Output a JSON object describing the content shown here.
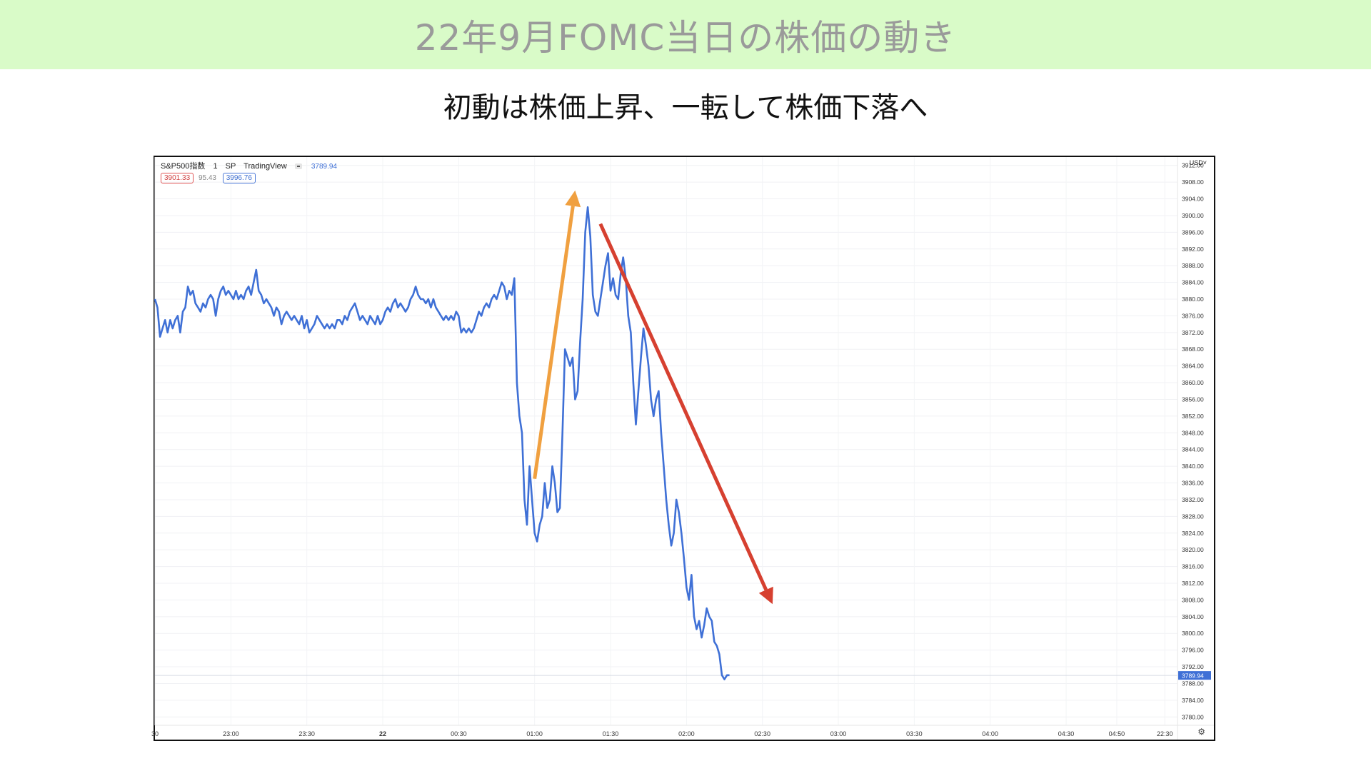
{
  "header": {
    "title": "22年9月FOMC当日の株価の動き",
    "subtitle": "初動は株価上昇、一転して株価下落へ"
  },
  "chart_info": {
    "symbol": "S&P500指数",
    "interval": "1",
    "exchange": "SP",
    "source": "TradingView",
    "last_price": "3789.94",
    "high_badge": "3901.33",
    "mid_value": "95.43",
    "low_badge": "3996.76",
    "currency": "USD˅"
  },
  "colors": {
    "banner_bg": "#d9fbc8",
    "line": "#3f70d6",
    "up_arrow": "#f0a040",
    "down_arrow": "#d64030",
    "price_label_bg": "#3f70d6"
  },
  "chart_data": {
    "type": "line",
    "title": "",
    "xlabel": "",
    "ylabel": "",
    "ylim": [
      3778,
      3914
    ],
    "y_ticks": [
      "3912.00",
      "3908.00",
      "3904.00",
      "3900.00",
      "3896.00",
      "3892.00",
      "3888.00",
      "3884.00",
      "3880.00",
      "3876.00",
      "3872.00",
      "3868.00",
      "3864.00",
      "3860.00",
      "3856.00",
      "3852.00",
      "3848.00",
      "3844.00",
      "3840.00",
      "3836.00",
      "3832.00",
      "3828.00",
      "3824.00",
      "3820.00",
      "3816.00",
      "3812.00",
      "3808.00",
      "3804.00",
      "3800.00",
      "3796.00",
      "3792.00",
      "3788.00",
      "3784.00",
      "3780.00"
    ],
    "x_ticks": [
      {
        "label": "30",
        "t": 0
      },
      {
        "label": "23:00",
        "t": 30
      },
      {
        "label": "23:30",
        "t": 60
      },
      {
        "label": "22",
        "t": 90
      },
      {
        "label": "00:30",
        "t": 120
      },
      {
        "label": "01:00",
        "t": 150
      },
      {
        "label": "01:30",
        "t": 180
      },
      {
        "label": "02:00",
        "t": 210
      },
      {
        "label": "02:30",
        "t": 240
      },
      {
        "label": "03:00",
        "t": 270
      },
      {
        "label": "03:30",
        "t": 300
      },
      {
        "label": "04:00",
        "t": 330
      },
      {
        "label": "04:30",
        "t": 360
      },
      {
        "label": "04:50",
        "t": 380
      },
      {
        "label": "22:30",
        "t": 399
      }
    ],
    "series": [
      {
        "name": "",
        "points": [
          [
            0,
            3880
          ],
          [
            1,
            3878
          ],
          [
            2,
            3871
          ],
          [
            3,
            3873
          ],
          [
            4,
            3875
          ],
          [
            5,
            3872
          ],
          [
            6,
            3875
          ],
          [
            7,
            3873
          ],
          [
            8,
            3875
          ],
          [
            9,
            3876
          ],
          [
            10,
            3872
          ],
          [
            11,
            3877
          ],
          [
            12,
            3878
          ],
          [
            13,
            3883
          ],
          [
            14,
            3881
          ],
          [
            15,
            3882
          ],
          [
            16,
            3879
          ],
          [
            17,
            3878
          ],
          [
            18,
            3877
          ],
          [
            19,
            3879
          ],
          [
            20,
            3878
          ],
          [
            21,
            3880
          ],
          [
            22,
            3881
          ],
          [
            23,
            3880
          ],
          [
            24,
            3876
          ],
          [
            25,
            3880
          ],
          [
            26,
            3882
          ],
          [
            27,
            3883
          ],
          [
            28,
            3881
          ],
          [
            29,
            3882
          ],
          [
            30,
            3881
          ],
          [
            31,
            3880
          ],
          [
            32,
            3882
          ],
          [
            33,
            3880
          ],
          [
            34,
            3881
          ],
          [
            35,
            3880
          ],
          [
            36,
            3882
          ],
          [
            37,
            3883
          ],
          [
            38,
            3881
          ],
          [
            39,
            3884
          ],
          [
            40,
            3887
          ],
          [
            41,
            3882
          ],
          [
            42,
            3881
          ],
          [
            43,
            3879
          ],
          [
            44,
            3880
          ],
          [
            45,
            3879
          ],
          [
            46,
            3878
          ],
          [
            47,
            3876
          ],
          [
            48,
            3878
          ],
          [
            49,
            3877
          ],
          [
            50,
            3874
          ],
          [
            51,
            3876
          ],
          [
            52,
            3877
          ],
          [
            53,
            3876
          ],
          [
            54,
            3875
          ],
          [
            55,
            3876
          ],
          [
            56,
            3875
          ],
          [
            57,
            3874
          ],
          [
            58,
            3876
          ],
          [
            59,
            3873
          ],
          [
            60,
            3875
          ],
          [
            61,
            3872
          ],
          [
            62,
            3873
          ],
          [
            63,
            3874
          ],
          [
            64,
            3876
          ],
          [
            65,
            3875
          ],
          [
            66,
            3874
          ],
          [
            67,
            3873
          ],
          [
            68,
            3874
          ],
          [
            69,
            3873
          ],
          [
            70,
            3874
          ],
          [
            71,
            3873
          ],
          [
            72,
            3875
          ],
          [
            73,
            3875
          ],
          [
            74,
            3874
          ],
          [
            75,
            3876
          ],
          [
            76,
            3875
          ],
          [
            77,
            3877
          ],
          [
            78,
            3878
          ],
          [
            79,
            3879
          ],
          [
            80,
            3877
          ],
          [
            81,
            3875
          ],
          [
            82,
            3876
          ],
          [
            83,
            3875
          ],
          [
            84,
            3874
          ],
          [
            85,
            3876
          ],
          [
            86,
            3875
          ],
          [
            87,
            3874
          ],
          [
            88,
            3876
          ],
          [
            89,
            3874
          ],
          [
            90,
            3875
          ],
          [
            91,
            3877
          ],
          [
            92,
            3878
          ],
          [
            93,
            3877
          ],
          [
            94,
            3879
          ],
          [
            95,
            3880
          ],
          [
            96,
            3878
          ],
          [
            97,
            3879
          ],
          [
            98,
            3878
          ],
          [
            99,
            3877
          ],
          [
            100,
            3878
          ],
          [
            101,
            3880
          ],
          [
            102,
            3881
          ],
          [
            103,
            3883
          ],
          [
            104,
            3881
          ],
          [
            105,
            3880
          ],
          [
            106,
            3880
          ],
          [
            107,
            3879
          ],
          [
            108,
            3880
          ],
          [
            109,
            3878
          ],
          [
            110,
            3880
          ],
          [
            111,
            3878
          ],
          [
            112,
            3877
          ],
          [
            113,
            3876
          ],
          [
            114,
            3875
          ],
          [
            115,
            3876
          ],
          [
            116,
            3875
          ],
          [
            117,
            3876
          ],
          [
            118,
            3875
          ],
          [
            119,
            3877
          ],
          [
            120,
            3876
          ],
          [
            121,
            3872
          ],
          [
            122,
            3873
          ],
          [
            123,
            3872
          ],
          [
            124,
            3873
          ],
          [
            125,
            3872
          ],
          [
            126,
            3873
          ],
          [
            127,
            3875
          ],
          [
            128,
            3877
          ],
          [
            129,
            3876
          ],
          [
            130,
            3878
          ],
          [
            131,
            3879
          ],
          [
            132,
            3878
          ],
          [
            133,
            3880
          ],
          [
            134,
            3881
          ],
          [
            135,
            3880
          ],
          [
            136,
            3882
          ],
          [
            137,
            3884
          ],
          [
            138,
            3883
          ],
          [
            139,
            3880
          ],
          [
            140,
            3882
          ],
          [
            141,
            3881
          ],
          [
            142,
            3885
          ],
          [
            143,
            3860
          ],
          [
            144,
            3852
          ],
          [
            145,
            3848
          ],
          [
            146,
            3832
          ],
          [
            147,
            3826
          ],
          [
            148,
            3840
          ],
          [
            149,
            3832
          ],
          [
            150,
            3824
          ],
          [
            151,
            3822
          ],
          [
            152,
            3826
          ],
          [
            153,
            3828
          ],
          [
            154,
            3836
          ],
          [
            155,
            3830
          ],
          [
            156,
            3832
          ],
          [
            157,
            3840
          ],
          [
            158,
            3836
          ],
          [
            159,
            3829
          ],
          [
            160,
            3830
          ],
          [
            161,
            3848
          ],
          [
            162,
            3868
          ],
          [
            163,
            3866
          ],
          [
            164,
            3864
          ],
          [
            165,
            3866
          ],
          [
            166,
            3856
          ],
          [
            167,
            3858
          ],
          [
            168,
            3870
          ],
          [
            169,
            3880
          ],
          [
            170,
            3896
          ],
          [
            171,
            3902
          ],
          [
            172,
            3895
          ],
          [
            173,
            3881
          ],
          [
            174,
            3877
          ],
          [
            175,
            3876
          ],
          [
            176,
            3880
          ],
          [
            177,
            3884
          ],
          [
            178,
            3888
          ],
          [
            179,
            3891
          ],
          [
            180,
            3882
          ],
          [
            181,
            3885
          ],
          [
            182,
            3881
          ],
          [
            183,
            3880
          ],
          [
            184,
            3886
          ],
          [
            185,
            3890
          ],
          [
            186,
            3885
          ],
          [
            187,
            3876
          ],
          [
            188,
            3872
          ],
          [
            189,
            3860
          ],
          [
            190,
            3850
          ],
          [
            191,
            3858
          ],
          [
            192,
            3866
          ],
          [
            193,
            3873
          ],
          [
            194,
            3869
          ],
          [
            195,
            3864
          ],
          [
            196,
            3856
          ],
          [
            197,
            3852
          ],
          [
            198,
            3856
          ],
          [
            199,
            3858
          ],
          [
            200,
            3848
          ],
          [
            201,
            3840
          ],
          [
            202,
            3832
          ],
          [
            203,
            3826
          ],
          [
            204,
            3821
          ],
          [
            205,
            3824
          ],
          [
            206,
            3832
          ],
          [
            207,
            3829
          ],
          [
            208,
            3824
          ],
          [
            209,
            3818
          ],
          [
            210,
            3811
          ],
          [
            211,
            3808
          ],
          [
            212,
            3814
          ],
          [
            213,
            3804
          ],
          [
            214,
            3801
          ],
          [
            215,
            3803
          ],
          [
            216,
            3799
          ],
          [
            217,
            3802
          ],
          [
            218,
            3806
          ],
          [
            219,
            3804
          ],
          [
            220,
            3803
          ],
          [
            221,
            3798
          ],
          [
            222,
            3797
          ],
          [
            223,
            3795
          ],
          [
            224,
            3790
          ],
          [
            225,
            3789
          ],
          [
            226,
            3790
          ],
          [
            227,
            3790
          ]
        ]
      }
    ],
    "annotations": [
      {
        "type": "arrow",
        "color": "#f0a040",
        "from": [
          150,
          3837
        ],
        "to": [
          166,
          3906
        ],
        "meaning": "rise"
      },
      {
        "type": "arrow",
        "color": "#d64030",
        "from": [
          176,
          3898
        ],
        "to": [
          244,
          3807
        ],
        "meaning": "fall"
      }
    ],
    "last_price_label": "3789.94",
    "grid": true
  }
}
